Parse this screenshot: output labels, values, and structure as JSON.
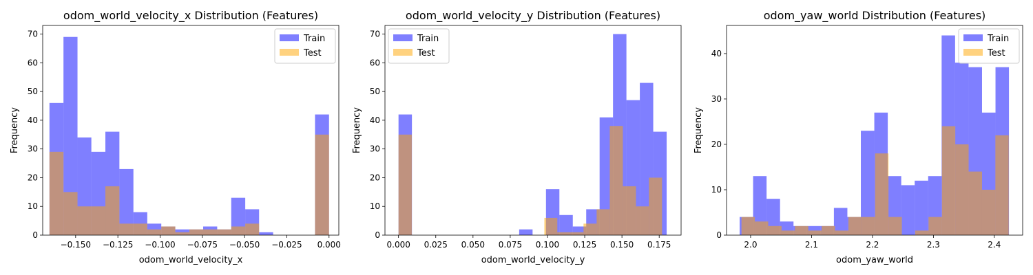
{
  "chart_data": [
    {
      "type": "histogram",
      "title": "odom_world_velocity_x Distribution (Features)",
      "xlabel": "odom_world_velocity_x",
      "ylabel": "Frequency",
      "xlim": [
        -0.1695,
        0.0058
      ],
      "ylim": [
        0,
        73
      ],
      "xticks": [
        -0.15,
        -0.125,
        -0.1,
        -0.075,
        -0.05,
        -0.025,
        0.0
      ],
      "xtick_labels": [
        "−0.150",
        "−0.125",
        "−0.100",
        "−0.075",
        "−0.050",
        "−0.025",
        "0.000"
      ],
      "yticks": [
        0,
        10,
        20,
        30,
        40,
        50,
        60,
        70
      ],
      "legend_position": "upper right",
      "series": [
        {
          "name": "Train",
          "color": "#0000ff",
          "alpha": 0.5,
          "bin_edges": [
            -0.1655,
            -0.1572,
            -0.1489,
            -0.1407,
            -0.1324,
            -0.1241,
            -0.1158,
            -0.1076,
            -0.0993,
            -0.091,
            -0.0827,
            -0.0745,
            -0.0662,
            -0.0579,
            -0.0496,
            -0.0414,
            -0.0331,
            -0.0248,
            -0.0165,
            -0.0083,
            0.0
          ],
          "counts": [
            46,
            69,
            34,
            29,
            36,
            23,
            8,
            4,
            3,
            2,
            2,
            3,
            2,
            13,
            9,
            1,
            0,
            0,
            0,
            42
          ]
        },
        {
          "name": "Test",
          "color": "#ffa500",
          "alpha": 0.5,
          "bin_edges": [
            -0.1655,
            -0.1572,
            -0.1489,
            -0.1407,
            -0.1324,
            -0.1241,
            -0.1158,
            -0.1076,
            -0.0993,
            -0.091,
            -0.0827,
            -0.0745,
            -0.0662,
            -0.0579,
            -0.0496,
            -0.0414,
            -0.0331,
            -0.0248,
            -0.0165,
            -0.0083,
            0.0
          ],
          "counts": [
            29,
            15,
            10,
            10,
            17,
            4,
            4,
            2,
            3,
            1,
            2,
            2,
            2,
            3,
            4,
            0,
            0,
            0,
            0,
            35
          ]
        }
      ]
    },
    {
      "type": "histogram",
      "title": "odom_world_velocity_y Distribution (Features)",
      "xlabel": "odom_world_velocity_y",
      "ylabel": "Frequency",
      "xlim": [
        -0.0091,
        0.1897
      ],
      "ylim": [
        0,
        73
      ],
      "xticks": [
        0.0,
        0.025,
        0.05,
        0.075,
        0.1,
        0.125,
        0.15,
        0.175
      ],
      "xtick_labels": [
        "0.000",
        "0.025",
        "0.050",
        "0.075",
        "0.100",
        "0.125",
        "0.150",
        "0.175"
      ],
      "yticks": [
        0,
        10,
        20,
        30,
        40,
        50,
        60,
        70
      ],
      "legend_position": "upper left",
      "series": [
        {
          "name": "Train",
          "color": "#0000ff",
          "alpha": 0.5,
          "bin_edges": [
            0.0,
            0.009,
            0.018,
            0.027,
            0.036,
            0.045,
            0.054,
            0.063,
            0.072,
            0.081,
            0.09,
            0.099,
            0.108,
            0.117,
            0.126,
            0.135,
            0.144,
            0.153,
            0.162,
            0.171,
            0.18
          ],
          "counts": [
            42,
            0,
            0,
            0,
            0,
            0,
            0,
            0,
            0,
            2,
            0,
            16,
            7,
            3,
            9,
            41,
            70,
            47,
            53,
            36
          ]
        },
        {
          "name": "Test",
          "color": "#ffa500",
          "alpha": 0.5,
          "bin_edges": [
            0.0,
            0.0089,
            0.0979,
            0.1066,
            0.1154,
            0.1242,
            0.133,
            0.1418,
            0.1506,
            0.1594,
            0.1681,
            0.1769
          ],
          "counts": [
            35,
            0,
            6,
            1,
            1,
            4,
            9,
            38,
            17,
            10,
            20
          ]
        }
      ]
    },
    {
      "type": "histogram",
      "title": "odom_yaw_world Distribution (Features)",
      "xlabel": "odom_yaw_world",
      "ylabel": "Frequency",
      "xlim": [
        1.9605,
        2.4465
      ],
      "ylim": [
        0,
        46.2
      ],
      "xticks": [
        2.0,
        2.1,
        2.2,
        2.3,
        2.4
      ],
      "xtick_labels": [
        "2.0",
        "2.1",
        "2.2",
        "2.3",
        "2.4"
      ],
      "yticks": [
        0,
        10,
        20,
        30,
        40
      ],
      "legend_position": "upper right",
      "series": [
        {
          "name": "Train",
          "color": "#0000ff",
          "alpha": 0.5,
          "bin_edges": [
            1.982,
            2.0041,
            2.0262,
            2.0483,
            2.0704,
            2.0925,
            2.1146,
            2.1367,
            2.1588,
            2.1809,
            2.203,
            2.2251,
            2.2472,
            2.2693,
            2.2914,
            2.3135,
            2.3356,
            2.3577,
            2.3798,
            2.4019,
            2.424
          ],
          "counts": [
            4,
            13,
            8,
            3,
            2,
            2,
            2,
            6,
            4,
            23,
            27,
            13,
            11,
            12,
            13,
            44,
            38,
            37,
            27,
            37
          ]
        },
        {
          "name": "Test",
          "color": "#ffa500",
          "alpha": 0.5,
          "bin_edges": [
            1.985,
            2.0069,
            2.0289,
            2.0508,
            2.0727,
            2.0947,
            2.1166,
            2.1385,
            2.1605,
            2.1824,
            2.2043,
            2.2263,
            2.2482,
            2.2701,
            2.292,
            2.314,
            2.3359,
            2.3578,
            2.3798,
            2.4017,
            2.4236
          ],
          "counts": [
            4,
            3,
            2,
            1,
            2,
            1,
            2,
            1,
            4,
            4,
            18,
            4,
            0,
            1,
            4,
            24,
            20,
            14,
            10,
            22
          ]
        }
      ]
    }
  ]
}
